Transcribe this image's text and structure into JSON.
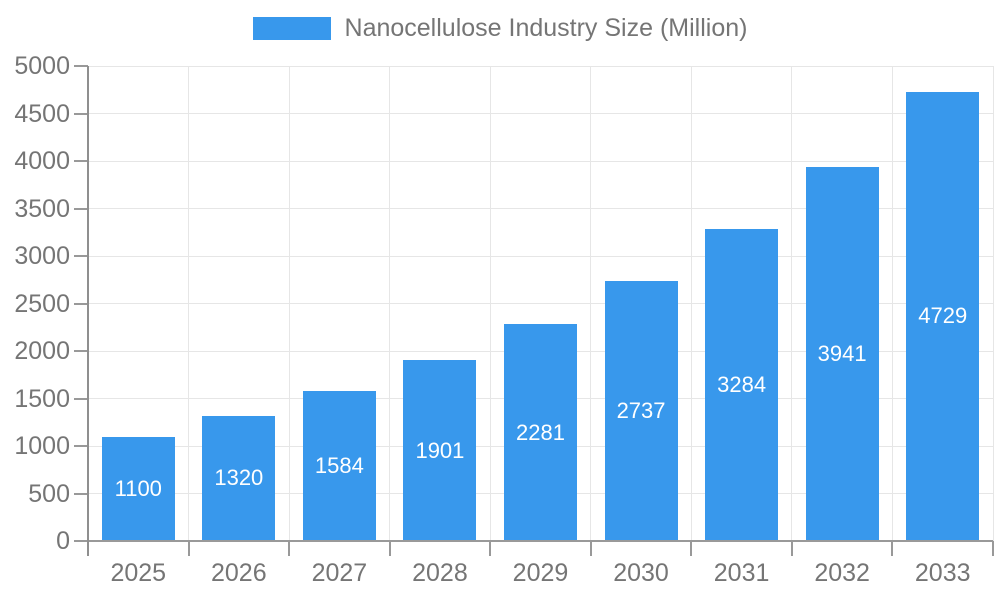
{
  "legend": {
    "label": "Nanocellulose Industry Size (Million)"
  },
  "chart_data": {
    "type": "bar",
    "title": "",
    "xlabel": "",
    "ylabel": "",
    "categories": [
      "2025",
      "2026",
      "2027",
      "2028",
      "2029",
      "2030",
      "2031",
      "2032",
      "2033"
    ],
    "series": [
      {
        "name": "Nanocellulose Industry Size (Million)",
        "values": [
          1100,
          1320,
          1584,
          1901,
          2281,
          2737,
          3284,
          3941,
          4729
        ]
      }
    ],
    "value_labels_shown": true,
    "ylim": [
      0,
      5000
    ],
    "yticks": [
      0,
      500,
      1000,
      1500,
      2000,
      2500,
      3000,
      3500,
      4000,
      4500,
      5000
    ],
    "grid": true,
    "legend_position": "top-center",
    "colors": {
      "bar": "#3898ec",
      "value_label": "#ffffff",
      "axis_label": "#757575",
      "grid_line": "#e6e6e6",
      "axis_line": "#999999"
    }
  }
}
